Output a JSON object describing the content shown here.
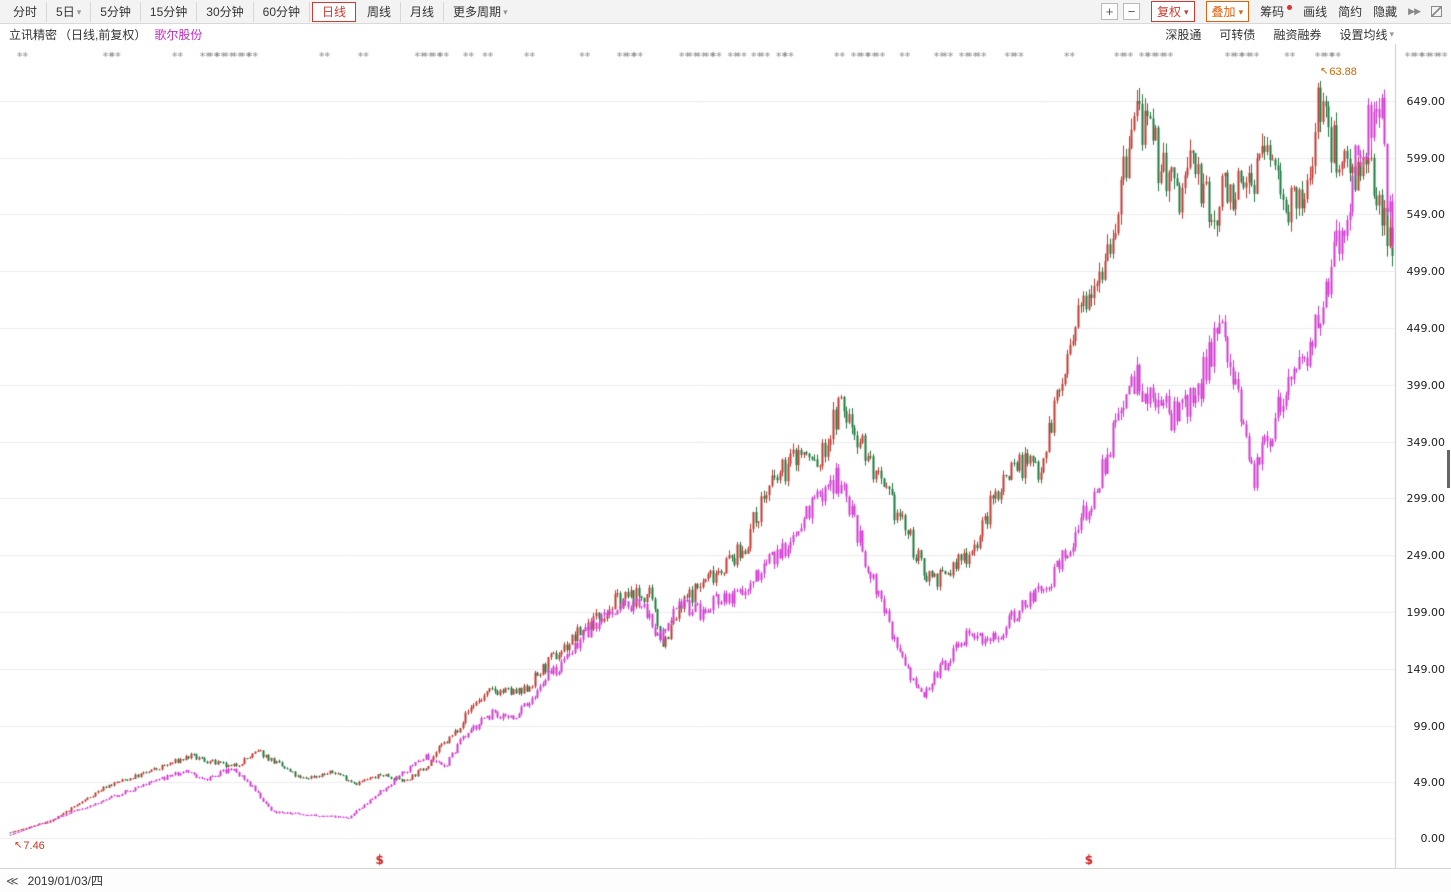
{
  "icons": {
    "caret": "▾",
    "marker_arrow": "↖"
  },
  "toolbar": {
    "period_tabs": [
      {
        "label": "分时"
      },
      {
        "label": "5日",
        "caret": true
      },
      {
        "label": "5分钟"
      },
      {
        "label": "15分钟"
      },
      {
        "label": "30分钟"
      },
      {
        "label": "60分钟"
      },
      {
        "label": "日线",
        "selected": true
      },
      {
        "label": "周线"
      },
      {
        "label": "月线"
      },
      {
        "label": "更多周期",
        "caret": true
      }
    ],
    "zoom_in_label": "+",
    "zoom_out_label": "−",
    "fuquan_label": "复权",
    "overlay_label": "叠加",
    "chips_label": "筹码",
    "draw_label": "画线",
    "simple_label": "简约",
    "hide_label": "隐藏",
    "collapse_icon": "▶▶"
  },
  "subbar": {
    "primary_title": "立讯精密",
    "primary_meta": "（日线,前复权）",
    "overlay_title": "歌尔股份",
    "links": {
      "szt": "深股通",
      "kzz": "可转债",
      "rzrq": "融资融券",
      "ma": "设置均线"
    }
  },
  "bottom": {
    "nav_icon": "≪",
    "date_label": "2019/01/03/四"
  },
  "chart_data": {
    "type": "candlestick",
    "y_axis": {
      "ticks": [
        "649.00",
        "599.00",
        "549.00",
        "499.00",
        "449.00",
        "399.00",
        "349.00",
        "299.00",
        "249.00",
        "199.00",
        "149.00",
        "99.00",
        "49.00",
        "0.00"
      ],
      "min": 0,
      "max": 683,
      "grid": true
    },
    "x_axis": {
      "start_label": "2019/01/03/四"
    },
    "annotations": {
      "low_label": "7.46",
      "high_label": "63.88",
      "dividend_symbol": "$",
      "dividend_positions": [
        0.267,
        0.779
      ]
    },
    "event_markers": [
      0.009,
      0.071,
      0.076,
      0.121,
      0.141,
      0.147,
      0.152,
      0.158,
      0.164,
      0.17,
      0.175,
      0.227,
      0.255,
      0.296,
      0.302,
      0.308,
      0.313,
      0.331,
      0.345,
      0.375,
      0.415,
      0.442,
      0.448,
      0.453,
      0.487,
      0.493,
      0.499,
      0.505,
      0.51,
      0.522,
      0.528,
      0.539,
      0.545,
      0.557,
      0.562,
      0.599,
      0.611,
      0.617,
      0.622,
      0.628,
      0.646,
      0.671,
      0.677,
      0.689,
      0.695,
      0.701,
      0.722,
      0.728,
      0.765,
      0.801,
      0.807,
      0.819,
      0.824,
      0.83,
      0.836,
      0.881,
      0.887,
      0.892,
      0.898,
      0.924,
      0.946,
      0.952,
      0.957,
      1.011,
      1.017,
      1.022,
      1.028,
      1.034
    ],
    "candle_count": 520,
    "colors": {
      "up": "#c23a32",
      "down": "#1f7a40",
      "overlay": "#d23ad2",
      "grid": "#ededed",
      "axis_border": "#cccccc",
      "axis_text": "#222222",
      "event_marker": "#8a8a8a",
      "dividend": "#cc2222"
    },
    "series": [
      {
        "name": "立讯精密",
        "palette": "updown",
        "seed": 7,
        "keypoints": [
          [
            0.0,
            5
          ],
          [
            0.03,
            15
          ],
          [
            0.07,
            46
          ],
          [
            0.1,
            58
          ],
          [
            0.13,
            72
          ],
          [
            0.16,
            62
          ],
          [
            0.18,
            76
          ],
          [
            0.21,
            52
          ],
          [
            0.235,
            58
          ],
          [
            0.25,
            48
          ],
          [
            0.27,
            56
          ],
          [
            0.285,
            50
          ],
          [
            0.3,
            62
          ],
          [
            0.31,
            78
          ],
          [
            0.32,
            90
          ],
          [
            0.335,
            118
          ],
          [
            0.35,
            130
          ],
          [
            0.37,
            127
          ],
          [
            0.39,
            155
          ],
          [
            0.42,
            190
          ],
          [
            0.44,
            210
          ],
          [
            0.462,
            214
          ],
          [
            0.472,
            172
          ],
          [
            0.49,
            212
          ],
          [
            0.51,
            235
          ],
          [
            0.53,
            252
          ],
          [
            0.545,
            300
          ],
          [
            0.57,
            340
          ],
          [
            0.585,
            328
          ],
          [
            0.6,
            381
          ],
          [
            0.615,
            352
          ],
          [
            0.63,
            306
          ],
          [
            0.645,
            280
          ],
          [
            0.66,
            235
          ],
          [
            0.675,
            228
          ],
          [
            0.7,
            262
          ],
          [
            0.712,
            300
          ],
          [
            0.725,
            330
          ],
          [
            0.745,
            328
          ],
          [
            0.757,
            385
          ],
          [
            0.77,
            440
          ],
          [
            0.78,
            490
          ],
          [
            0.79,
            510
          ],
          [
            0.8,
            545
          ],
          [
            0.815,
            645
          ],
          [
            0.825,
            608
          ],
          [
            0.835,
            590
          ],
          [
            0.845,
            560
          ],
          [
            0.855,
            600
          ],
          [
            0.87,
            538
          ],
          [
            0.88,
            580
          ],
          [
            0.89,
            562
          ],
          [
            0.9,
            590
          ],
          [
            0.91,
            606
          ],
          [
            0.92,
            576
          ],
          [
            0.93,
            548
          ],
          [
            0.94,
            572
          ],
          [
            0.946,
            660
          ],
          [
            0.955,
            612
          ],
          [
            0.965,
            600
          ],
          [
            0.975,
            592
          ],
          [
            0.985,
            576
          ],
          [
            1.0,
            530
          ]
        ]
      },
      {
        "name": "歌尔股份",
        "palette": "overlay",
        "seed": 13,
        "keypoints": [
          [
            0.0,
            3
          ],
          [
            0.065,
            32
          ],
          [
            0.1,
            48
          ],
          [
            0.125,
            58
          ],
          [
            0.145,
            52
          ],
          [
            0.16,
            62
          ],
          [
            0.175,
            45
          ],
          [
            0.19,
            23
          ],
          [
            0.22,
            20
          ],
          [
            0.245,
            18
          ],
          [
            0.26,
            33
          ],
          [
            0.285,
            58
          ],
          [
            0.3,
            72
          ],
          [
            0.315,
            64
          ],
          [
            0.33,
            92
          ],
          [
            0.35,
            110
          ],
          [
            0.365,
            104
          ],
          [
            0.385,
            138
          ],
          [
            0.4,
            155
          ],
          [
            0.42,
            185
          ],
          [
            0.44,
            200
          ],
          [
            0.455,
            210
          ],
          [
            0.47,
            175
          ],
          [
            0.485,
            205
          ],
          [
            0.5,
            200
          ],
          [
            0.52,
            212
          ],
          [
            0.535,
            225
          ],
          [
            0.55,
            245
          ],
          [
            0.565,
            262
          ],
          [
            0.58,
            290
          ],
          [
            0.6,
            317
          ],
          [
            0.615,
            260
          ],
          [
            0.63,
            210
          ],
          [
            0.645,
            155
          ],
          [
            0.66,
            127
          ],
          [
            0.68,
            160
          ],
          [
            0.695,
            182
          ],
          [
            0.71,
            172
          ],
          [
            0.725,
            196
          ],
          [
            0.74,
            212
          ],
          [
            0.755,
            232
          ],
          [
            0.77,
            265
          ],
          [
            0.785,
            305
          ],
          [
            0.8,
            360
          ],
          [
            0.815,
            403
          ],
          [
            0.83,
            382
          ],
          [
            0.845,
            368
          ],
          [
            0.86,
            398
          ],
          [
            0.877,
            455
          ],
          [
            0.888,
            394
          ],
          [
            0.899,
            315
          ],
          [
            0.909,
            350
          ],
          [
            0.92,
            385
          ],
          [
            0.935,
            412
          ],
          [
            0.949,
            473
          ],
          [
            0.964,
            544
          ],
          [
            0.975,
            597
          ],
          [
            0.986,
            641
          ],
          [
            0.991,
            650
          ],
          [
            1.0,
            509
          ]
        ]
      }
    ]
  }
}
